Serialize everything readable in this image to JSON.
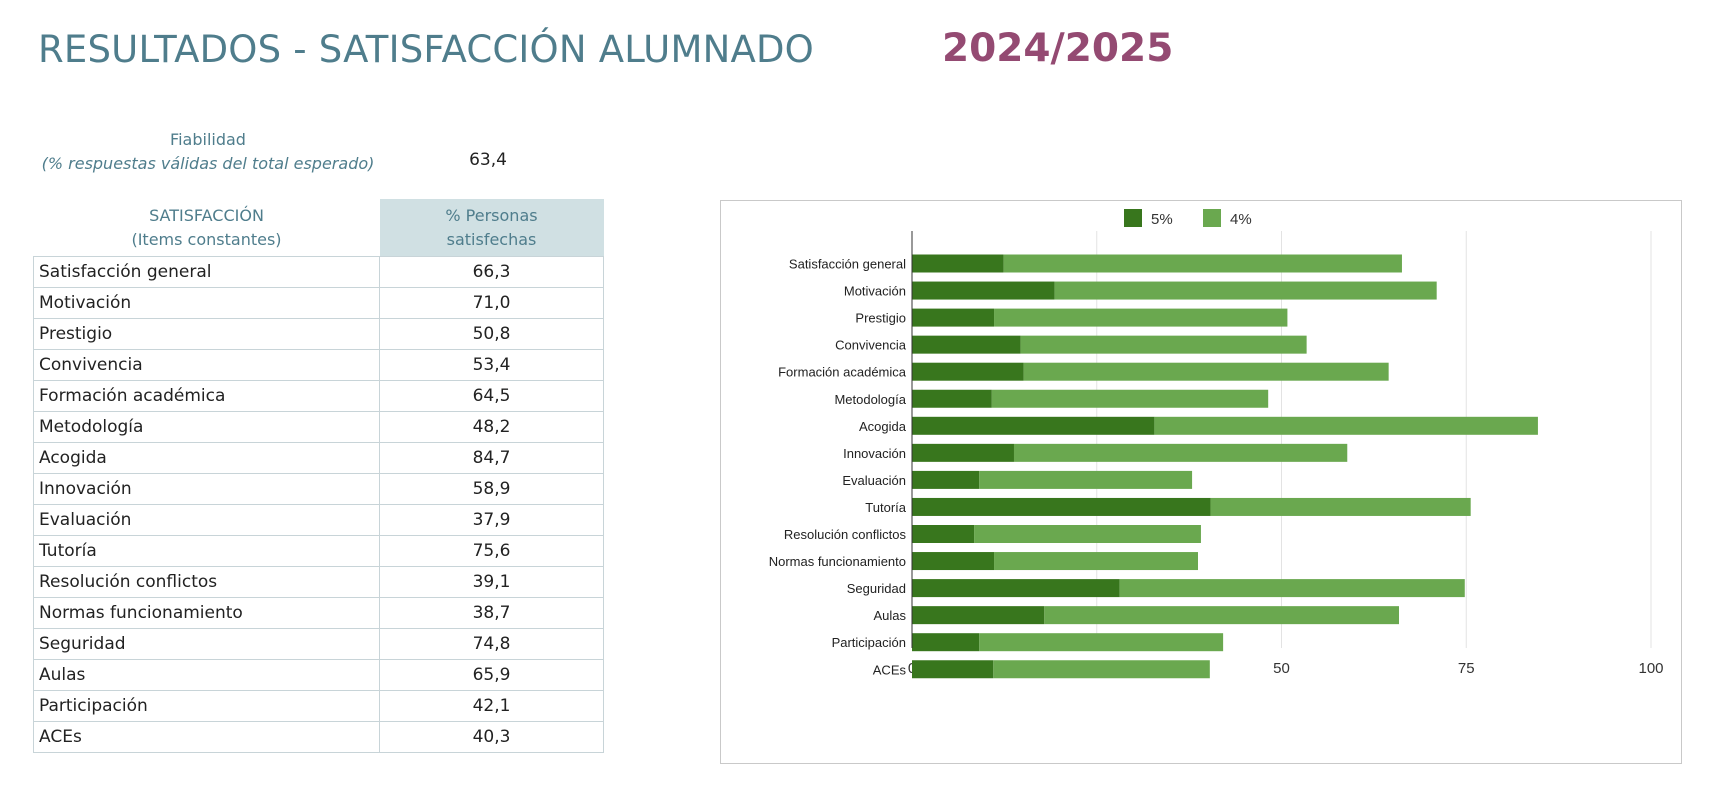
{
  "header": {
    "title": "RESULTADOS - SATISFACCIÓN ALUMNADO",
    "year": "2024/2025"
  },
  "reliability": {
    "label": "Fiabilidad",
    "sublabel": "(% respuestas válidas del total esperado)",
    "value": "63,4"
  },
  "table": {
    "header_item_line1": "SATISFACCIÓN",
    "header_item_line2": "(Items constantes)",
    "header_value_line1": "% Personas",
    "header_value_line2": "satisfechas",
    "rows": [
      {
        "item": "Satisfacción general",
        "value": "66,3"
      },
      {
        "item": "Motivación",
        "value": "71,0"
      },
      {
        "item": "Prestigio",
        "value": "50,8"
      },
      {
        "item": "Convivencia",
        "value": "53,4"
      },
      {
        "item": "Formación académica",
        "value": "64,5"
      },
      {
        "item": "Metodología",
        "value": "48,2"
      },
      {
        "item": "Acogida",
        "value": "84,7"
      },
      {
        "item": "Innovación",
        "value": "58,9"
      },
      {
        "item": "Evaluación",
        "value": "37,9"
      },
      {
        "item": "Tutoría",
        "value": "75,6"
      },
      {
        "item": "Resolución conflictos",
        "value": "39,1"
      },
      {
        "item": "Normas funcionamiento",
        "value": "38,7"
      },
      {
        "item": "Seguridad",
        "value": "74,8"
      },
      {
        "item": "Aulas",
        "value": "65,9"
      },
      {
        "item": "Participación",
        "value": "42,1"
      },
      {
        "item": "ACEs",
        "value": "40,3"
      }
    ]
  },
  "chart_data": {
    "type": "bar",
    "orientation": "horizontal",
    "stacked": true,
    "categories": [
      "Satisfacción general",
      "Motivación",
      "Prestigio",
      "Convivencia",
      "Formación académica",
      "Metodología",
      "Acogida",
      "Innovación",
      "Evaluación",
      "Tutoría",
      "Resolución conflictos",
      "Normas funcionamiento",
      "Seguridad",
      "Aulas",
      "Participación",
      "ACEs"
    ],
    "series": [
      {
        "name": "5%",
        "color": "#38761d",
        "values": [
          12.4,
          19.3,
          11.1,
          14.7,
          15.1,
          10.8,
          32.8,
          13.8,
          9.1,
          40.4,
          8.4,
          11.1,
          28.1,
          17.9,
          9.1,
          11.0
        ]
      },
      {
        "name": "4%",
        "color": "#6aa84f",
        "values": [
          53.9,
          51.7,
          39.7,
          38.7,
          49.4,
          37.4,
          51.9,
          45.1,
          28.8,
          35.2,
          30.7,
          27.6,
          46.7,
          48.0,
          33.0,
          29.3
        ]
      }
    ],
    "xlim": [
      0,
      100
    ],
    "xticks": [
      "0",
      "25",
      "50",
      "75",
      "100"
    ],
    "grid": true,
    "legend_position": "top"
  }
}
